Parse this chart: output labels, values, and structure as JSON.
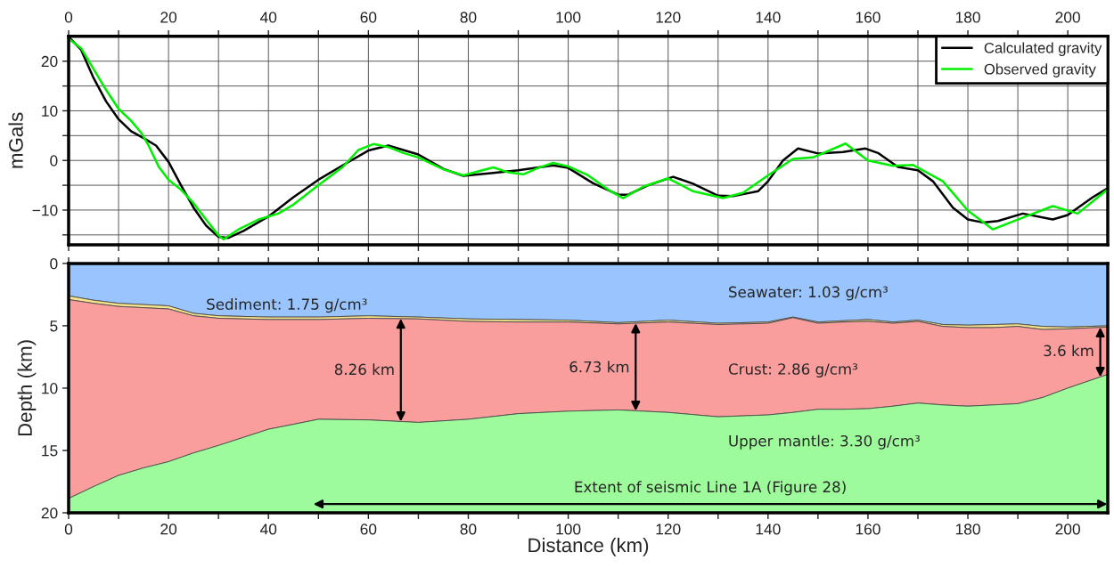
{
  "chart_data": [
    {
      "type": "line",
      "ylabel": "mGals",
      "xlim": [
        0,
        208
      ],
      "ylim": [
        -17,
        25
      ],
      "xticks": [
        0,
        {
          "value": 10,
          "label": null
        },
        20,
        {
          "value": 30,
          "label": null
        },
        40,
        {
          "value": 50,
          "label": null
        },
        60,
        {
          "value": 70,
          "label": null
        },
        80,
        {
          "value": 90,
          "label": null
        },
        100,
        {
          "value": 110,
          "label": null
        },
        120,
        {
          "value": 130,
          "label": null
        },
        140,
        {
          "value": 150,
          "label": null
        },
        160,
        {
          "value": 170,
          "label": null
        },
        180,
        {
          "value": 190,
          "label": null
        },
        200
      ],
      "yticks": [
        {
          "value": -15,
          "label": null
        },
        -10,
        {
          "value": -5,
          "label": null
        },
        0,
        {
          "value": 5,
          "label": null
        },
        10,
        {
          "value": 15,
          "label": null
        },
        20
      ],
      "grid": true,
      "legend": "top right",
      "series": [
        {
          "name": "Calculated gravity",
          "color": "#000000",
          "x": [
            0,
            2.5,
            5,
            7.5,
            10,
            12.5,
            15,
            17.5,
            20,
            22.5,
            25,
            27.5,
            30,
            32,
            35,
            40,
            45,
            50,
            55,
            60,
            64,
            70,
            75,
            79,
            85,
            90,
            97,
            100,
            105,
            110,
            112,
            116,
            121,
            125,
            130,
            133,
            135,
            138,
            140,
            143,
            146,
            150,
            155,
            159.5,
            162,
            166,
            170,
            173,
            177,
            180,
            183,
            186,
            191,
            197,
            200,
            205,
            208
          ],
          "values": [
            24.9,
            22.3,
            16.6,
            11.9,
            8.3,
            5.9,
            4.5,
            3.0,
            -0.3,
            -5.0,
            -9.5,
            -13.1,
            -15.4,
            -15.6,
            -14.2,
            -11.3,
            -7.4,
            -3.9,
            -0.9,
            2.0,
            3.0,
            1.2,
            -1.7,
            -3.1,
            -2.5,
            -2.0,
            -1.0,
            -1.5,
            -4.6,
            -6.9,
            -6.9,
            -5.0,
            -3.3,
            -4.7,
            -7.1,
            -7.2,
            -6.8,
            -6.2,
            -4.2,
            0.0,
            2.4,
            1.4,
            1.7,
            2.4,
            1.5,
            -1.3,
            -2.0,
            -4.2,
            -9.5,
            -11.9,
            -12.5,
            -12.2,
            -10.7,
            -11.9,
            -11.0,
            -7.4,
            -5.6
          ]
        },
        {
          "name": "Observed gravity",
          "color": "#00ee00",
          "x": [
            0,
            2.5,
            5,
            7.5,
            10,
            12.5,
            14.5,
            16,
            18,
            20,
            22.5,
            25,
            27.5,
            30,
            31,
            34,
            38,
            42,
            45,
            50,
            55,
            58,
            61,
            64,
            67,
            70,
            75,
            79,
            85,
            88,
            91,
            94,
            97,
            100,
            104,
            108,
            111,
            115,
            120,
            125,
            131,
            135,
            140,
            145,
            149,
            155.5,
            160,
            165,
            169,
            175,
            180,
            185,
            190,
            197,
            202,
            208
          ],
          "values": [
            24.5,
            22.6,
            18.4,
            14.2,
            10.4,
            8.0,
            5.6,
            3.0,
            -1.2,
            -3.9,
            -5.9,
            -8.6,
            -11.9,
            -15.1,
            -15.9,
            -13.9,
            -11.9,
            -10.7,
            -8.9,
            -5.0,
            -1.2,
            2.1,
            3.3,
            2.7,
            1.5,
            0.6,
            -1.8,
            -3.0,
            -1.4,
            -2.4,
            -2.8,
            -1.5,
            -0.5,
            -1.2,
            -3.0,
            -5.9,
            -7.6,
            -5.3,
            -3.6,
            -6.2,
            -7.6,
            -6.5,
            -3.0,
            0.3,
            0.6,
            3.4,
            0.0,
            -1.1,
            -0.9,
            -4.2,
            -10.1,
            -13.9,
            -11.9,
            -9.2,
            -10.7,
            -5.8
          ]
        }
      ]
    },
    {
      "type": "area",
      "stacked": true,
      "xlabel": "Distance (km)",
      "ylabel": "Depth (km)",
      "xlim": [
        0,
        208
      ],
      "ylim": [
        20,
        0
      ],
      "xticks": [
        0,
        {
          "value": 10,
          "label": null
        },
        20,
        {
          "value": 30,
          "label": null
        },
        40,
        {
          "value": 50,
          "label": null
        },
        60,
        {
          "value": 70,
          "label": null
        },
        80,
        {
          "value": 90,
          "label": null
        },
        100,
        {
          "value": 110,
          "label": null
        },
        120,
        {
          "value": 130,
          "label": null
        },
        140,
        {
          "value": 150,
          "label": null
        },
        160,
        {
          "value": 170,
          "label": null
        },
        180,
        {
          "value": 190,
          "label": null
        },
        200
      ],
      "yticks": [
        0,
        5,
        10,
        15,
        20
      ],
      "x": [
        0,
        5,
        10,
        15,
        20,
        25,
        30,
        40,
        50,
        60,
        70,
        80,
        90,
        100,
        110,
        120,
        130,
        140,
        145,
        150,
        155,
        160,
        165,
        170,
        175,
        180,
        185,
        190,
        195,
        200,
        208
      ],
      "series": [
        {
          "name": "Seawater: 1.03 g/cm³",
          "color": "#99c4fd",
          "values": [
            2.6,
            2.95,
            3.2,
            3.3,
            3.4,
            4.0,
            4.2,
            4.3,
            4.3,
            4.2,
            4.3,
            4.45,
            4.5,
            4.55,
            4.75,
            4.55,
            4.8,
            4.7,
            4.3,
            4.7,
            4.6,
            4.5,
            4.7,
            4.55,
            4.9,
            4.95,
            4.9,
            4.85,
            5.05,
            5.1,
            5.0
          ]
        },
        {
          "name": "Sediment: 1.75 g/cm³",
          "color": "#f6e48e",
          "values": [
            0.3,
            0.25,
            0.25,
            0.25,
            0.25,
            0.2,
            0.2,
            0.2,
            0.2,
            0.2,
            0.15,
            0.2,
            0.2,
            0.15,
            0.1,
            0.15,
            0.1,
            0.1,
            0.05,
            0.1,
            0.1,
            0.15,
            0.1,
            0.1,
            0.15,
            0.2,
            0.25,
            0.2,
            0.25,
            0.15,
            0.1
          ]
        },
        {
          "name": "Crust: 2.86 g/cm³",
          "color": "#f99d9d",
          "values": [
            15.95,
            14.7,
            13.55,
            12.85,
            12.25,
            11.0,
            10.2,
            8.8,
            8.0,
            8.15,
            8.3,
            7.85,
            7.35,
            7.15,
            6.9,
            7.25,
            7.4,
            7.35,
            7.6,
            6.9,
            7.0,
            7.0,
            6.65,
            6.55,
            6.3,
            6.3,
            6.2,
            6.2,
            5.45,
            4.75,
            3.8
          ]
        },
        {
          "name": "Upper mantle: 3.30 g/cm³",
          "color": "#9efb9b",
          "values": [
            1.15,
            2.1,
            3.0,
            3.6,
            4.1,
            4.8,
            5.4,
            6.7,
            7.5,
            7.45,
            7.25,
            7.5,
            7.95,
            8.15,
            8.25,
            8.05,
            7.7,
            7.85,
            8.05,
            8.3,
            8.3,
            8.35,
            8.55,
            8.8,
            8.65,
            8.55,
            8.65,
            8.75,
            9.25,
            10.0,
            11.1
          ]
        }
      ],
      "annotations": [
        "8.26 km",
        "6.73 km",
        "3.6 km",
        "Extent of seismic Line 1A (Figure 28)"
      ]
    }
  ]
}
